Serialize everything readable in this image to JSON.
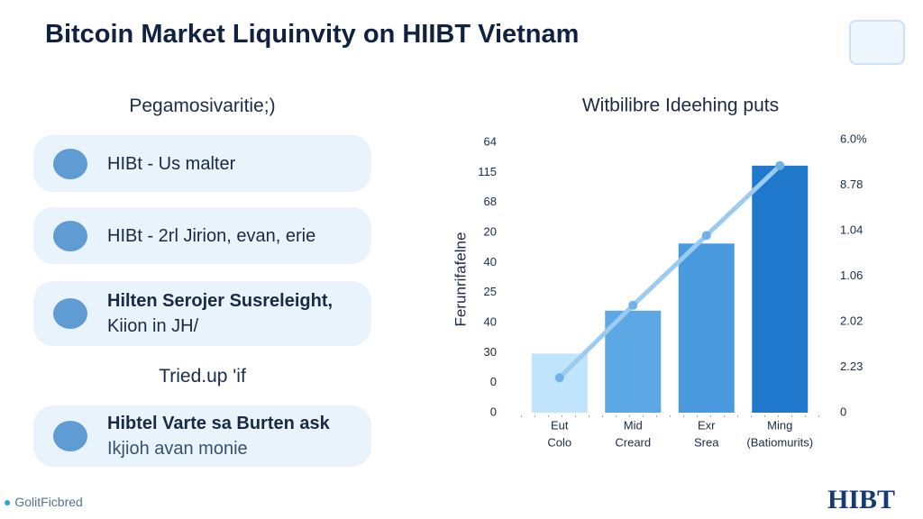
{
  "header": {
    "title": "Bitcoin Market Liquinvity on HIIBT Vietnam"
  },
  "left": {
    "heading": "Pegamosivaritie;)",
    "cards": [
      {
        "lines": [
          "HIBt - Us malter"
        ]
      },
      {
        "lines": [
          "HIBt - 2rl Jirion, evan, erie"
        ]
      },
      {
        "lines": [
          "Hilten Serojer Susreleight,",
          "Kiion in JH/"
        ]
      }
    ],
    "subheading": "Tried.up 'if",
    "bottom_card": {
      "lines": [
        "Hibtel Varte sa Burten ask",
        "Ikjioh avan monie"
      ]
    }
  },
  "footer": {
    "left": "GolitFicbred",
    "logo": "HIBT"
  },
  "chart_data": {
    "type": "bar",
    "title": "Witbilibre Ideehing puts",
    "y_label": "Ferunrifafelne",
    "categories": [
      [
        "Eut",
        "Colo"
      ],
      [
        "Mid",
        "Creard"
      ],
      [
        "Exr",
        "Srea"
      ],
      [
        "Ming",
        "(Batiomurits)"
      ]
    ],
    "values": [
      22,
      38,
      63,
      92
    ],
    "colors": [
      "#bfe4fb",
      "#5ba8e4",
      "#4a9ae0",
      "#1f78cc"
    ],
    "line_values": [
      13,
      40,
      66,
      92
    ],
    "line_color": "#9ccbf0",
    "ylim": [
      0,
      100
    ],
    "left_axis_labels": [
      "64",
      "115",
      "68",
      "20",
      "40",
      "25",
      "40",
      "30",
      "0",
      "0"
    ],
    "right_axis_labels": [
      "6.0%",
      "8.78",
      "1.04",
      "1.06",
      "2.02",
      "2.23",
      "0"
    ]
  }
}
